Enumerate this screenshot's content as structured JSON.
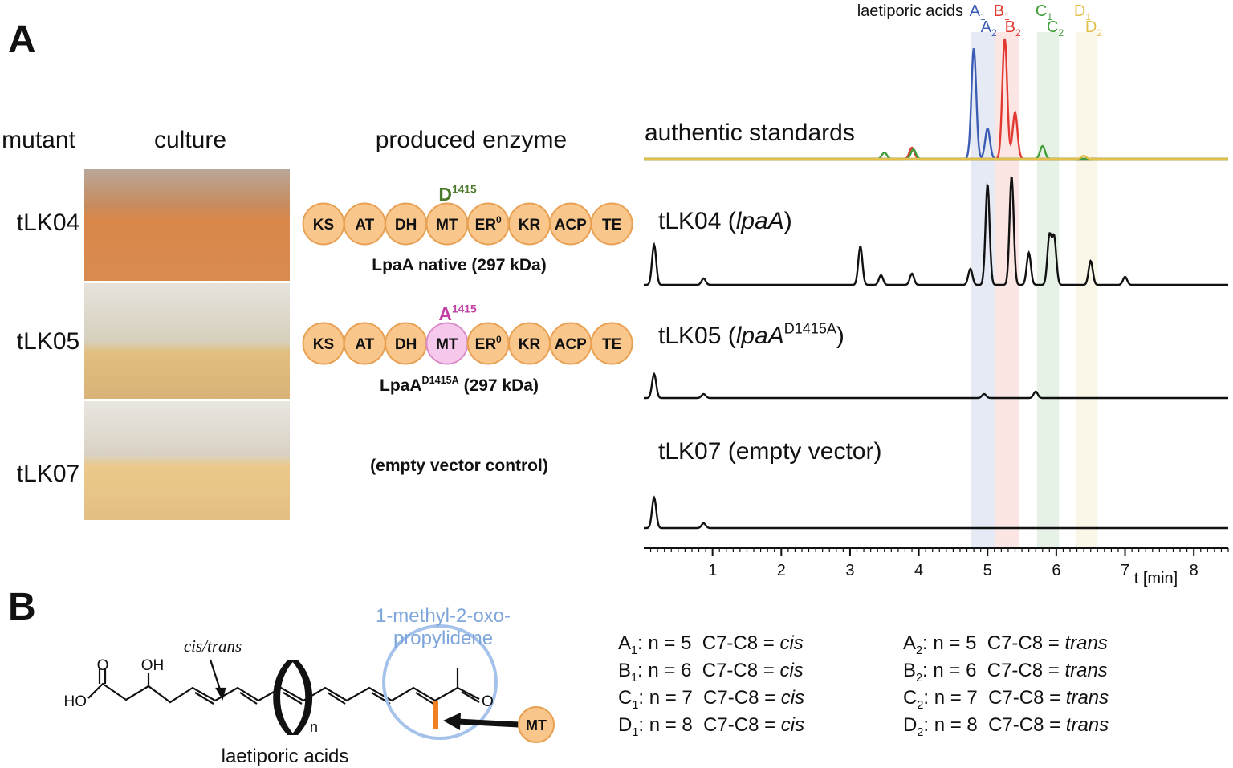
{
  "panel_a": {
    "label": "A",
    "headers": {
      "mutant": "mutant",
      "culture": "culture",
      "enzyme": "produced enzyme"
    },
    "domains": [
      {
        "text": "KS"
      },
      {
        "text": "AT"
      },
      {
        "text": "DH"
      },
      {
        "text": "MT"
      },
      {
        "text": "ER",
        "sup": "0"
      },
      {
        "text": "KR"
      },
      {
        "text": "ACP"
      },
      {
        "text": "TE"
      }
    ],
    "rows": [
      {
        "mutant": "tLK04",
        "site": [
          {
            "text": "D"
          },
          {
            "text": "1415",
            "style": "sup"
          }
        ],
        "site_color": "#4a7a2a",
        "enzyme": [
          {
            "text": "LpaA native (297 kDa)"
          }
        ]
      },
      {
        "mutant": "tLK05",
        "site": [
          {
            "text": "A"
          },
          {
            "text": "1415",
            "style": "sup"
          }
        ],
        "site_color": "#c23fa6",
        "enzyme": [
          {
            "text": "LpaA"
          },
          {
            "text": "D1415A",
            "style": "sup"
          },
          {
            "text": " (297 kDa)"
          }
        ]
      },
      {
        "mutant": "tLK07",
        "enzyme": [
          {
            "text": "(empty vector control)"
          }
        ]
      }
    ],
    "chromatogram": {
      "legend_title": "laetiporic acids",
      "compounds": [
        {
          "color": "#3d5db5",
          "labels": [
            [
              {
                "text": "A"
              },
              {
                "text": "1",
                "style": "sub"
              }
            ],
            [
              {
                "text": "A"
              },
              {
                "text": "2",
                "style": "sub"
              }
            ]
          ],
          "window": [
            4.76,
            5.11
          ],
          "standard_peaks": [
            {
              "t": 4.8,
              "h": 138
            },
            {
              "t": 5.0,
              "h": 38
            }
          ]
        },
        {
          "color": "#e23a32",
          "labels": [
            [
              {
                "text": "B"
              },
              {
                "text": "1",
                "style": "sub"
              }
            ],
            [
              {
                "text": "B"
              },
              {
                "text": "2",
                "style": "sub"
              }
            ]
          ],
          "window": [
            5.11,
            5.46
          ],
          "standard_peaks": [
            {
              "t": 5.25,
              "h": 150
            },
            {
              "t": 5.4,
              "h": 58
            },
            {
              "t": 3.9,
              "h": 14
            }
          ]
        },
        {
          "color": "#3f9d3a",
          "labels": [
            [
              {
                "text": "C"
              },
              {
                "text": "1",
                "style": "sub"
              }
            ],
            [
              {
                "text": "C"
              },
              {
                "text": "2",
                "style": "sub"
              }
            ]
          ],
          "window": [
            5.72,
            6.04
          ],
          "standard_peaks": [
            {
              "t": 5.8,
              "h": 16
            },
            {
              "t": 3.92,
              "h": 12
            },
            {
              "t": 3.5,
              "h": 8
            }
          ]
        },
        {
          "color": "#e3c04a",
          "labels": [
            [
              {
                "text": "D"
              },
              {
                "text": "1",
                "style": "sub"
              }
            ],
            [
              {
                "text": "D"
              },
              {
                "text": "2",
                "style": "sub"
              }
            ]
          ],
          "window": [
            6.28,
            6.6
          ],
          "standard_peaks": [
            {
              "t": 6.4,
              "h": 4
            }
          ]
        }
      ],
      "standards_label": "authentic standards",
      "traces": [
        {
          "label": [
            {
              "text": "tLK04 ("
            },
            {
              "text": "lpaA",
              "style": "italic"
            },
            {
              "text": ")"
            }
          ],
          "peaks": [
            {
              "t": 0.15,
              "h": 50
            },
            {
              "t": 0.87,
              "h": 8
            },
            {
              "t": 3.15,
              "h": 48
            },
            {
              "t": 3.45,
              "h": 12
            },
            {
              "t": 3.9,
              "h": 14
            },
            {
              "t": 4.75,
              "h": 20
            },
            {
              "t": 5.0,
              "h": 125
            },
            {
              "t": 5.35,
              "h": 135
            },
            {
              "t": 5.6,
              "h": 40
            },
            {
              "t": 5.9,
              "h": 60
            },
            {
              "t": 5.97,
              "h": 58
            },
            {
              "t": 6.5,
              "h": 30
            },
            {
              "t": 7.0,
              "h": 10
            }
          ]
        },
        {
          "label": [
            {
              "text": "tLK05 ("
            },
            {
              "text": "lpaA",
              "style": "italic"
            },
            {
              "text": "D1415A",
              "style": "sup"
            },
            {
              "text": ")"
            }
          ],
          "peaks": [
            {
              "t": 0.15,
              "h": 30
            },
            {
              "t": 0.87,
              "h": 5
            },
            {
              "t": 4.95,
              "h": 5
            },
            {
              "t": 5.7,
              "h": 8
            }
          ]
        },
        {
          "label": [
            {
              "text": "tLK07 (empty vector)"
            }
          ],
          "peaks": [
            {
              "t": 0.15,
              "h": 38
            },
            {
              "t": 0.87,
              "h": 6
            }
          ]
        }
      ],
      "xlim": [
        0,
        8.5
      ],
      "xticks": [
        1,
        2,
        3,
        4,
        5,
        6,
        7,
        8
      ],
      "xlabel": "t [min]"
    }
  },
  "panel_b": {
    "label": "B",
    "structure": {
      "carbonyl_o": "O",
      "hydroxyl": "OH",
      "acid_oh": "HO",
      "ketone_o": "O",
      "stereo": "cis/trans",
      "repeat": "n",
      "name": "laetiporic acids",
      "moiety": [
        "1-methyl-2-oxo-",
        "propylidene"
      ],
      "enzyme": "MT"
    },
    "columns": [
      [
        [
          {
            "text": "A"
          },
          {
            "text": "1",
            "style": "sub"
          },
          {
            "text": ": n = 5  C7-C8 = "
          },
          {
            "text": "cis",
            "style": "italic"
          }
        ],
        [
          {
            "text": "B"
          },
          {
            "text": "1",
            "style": "sub"
          },
          {
            "text": ": n = 6  C7-C8 = "
          },
          {
            "text": "cis",
            "style": "italic"
          }
        ],
        [
          {
            "text": "C"
          },
          {
            "text": "1",
            "style": "sub"
          },
          {
            "text": ": n = 7  C7-C8 = "
          },
          {
            "text": "cis",
            "style": "italic"
          }
        ],
        [
          {
            "text": "D"
          },
          {
            "text": "1",
            "style": "sub"
          },
          {
            "text": ": n = 8  C7-C8 = "
          },
          {
            "text": "cis",
            "style": "italic"
          }
        ]
      ],
      [
        [
          {
            "text": "A"
          },
          {
            "text": "2",
            "style": "sub"
          },
          {
            "text": ": n = 5  C7-C8 = "
          },
          {
            "text": "trans",
            "style": "italic"
          }
        ],
        [
          {
            "text": "B"
          },
          {
            "text": "2",
            "style": "sub"
          },
          {
            "text": ": n = 6  C7-C8 = "
          },
          {
            "text": "trans",
            "style": "italic"
          }
        ],
        [
          {
            "text": "C"
          },
          {
            "text": "2",
            "style": "sub"
          },
          {
            "text": ": n = 7  C7-C8 = "
          },
          {
            "text": "trans",
            "style": "italic"
          }
        ],
        [
          {
            "text": "D"
          },
          {
            "text": "2",
            "style": "sub"
          },
          {
            "text": ": n = 8  C7-C8 = "
          },
          {
            "text": "trans",
            "style": "italic"
          }
        ]
      ]
    ]
  }
}
